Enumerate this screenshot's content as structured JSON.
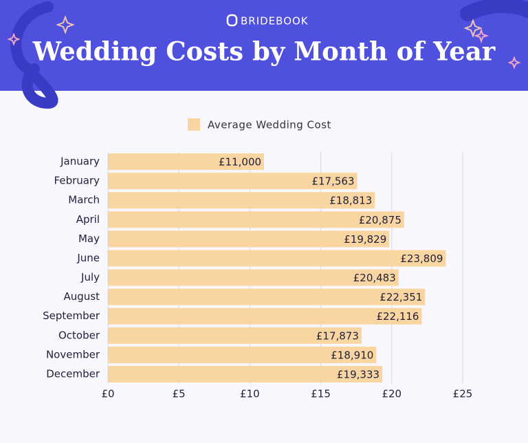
{
  "chart_data": {
    "type": "bar",
    "orientation": "horizontal",
    "brand": "BRIDEBOOK",
    "title": "Wedding Costs by Month of Year",
    "categories": [
      "January",
      "February",
      "March",
      "April",
      "May",
      "June",
      "July",
      "August",
      "September",
      "October",
      "November",
      "December"
    ],
    "series": [
      {
        "name": "Average Wedding Cost",
        "color": "#f9d6a1",
        "values": [
          11.0,
          17.563,
          18.813,
          20.875,
          19.829,
          23.809,
          20.483,
          22.351,
          22.116,
          17.873,
          18.91,
          19.333
        ],
        "value_labels": [
          "£11,000",
          "£17,563",
          "£18,813",
          "£20,875",
          "£19,829",
          "£23,809",
          "£20,483",
          "£22,351",
          "£22,116",
          "£17,873",
          "£18,910",
          "£19,333"
        ]
      }
    ],
    "xlim": [
      0,
      25
    ],
    "xticks": [
      {
        "value": 0,
        "label": "£0"
      },
      {
        "value": 5,
        "label": "£5"
      },
      {
        "value": 10,
        "label": "£10"
      },
      {
        "value": 15,
        "label": "£15"
      },
      {
        "value": 20,
        "label": "£20"
      },
      {
        "value": 25,
        "label": "£25"
      }
    ],
    "grid": true
  }
}
